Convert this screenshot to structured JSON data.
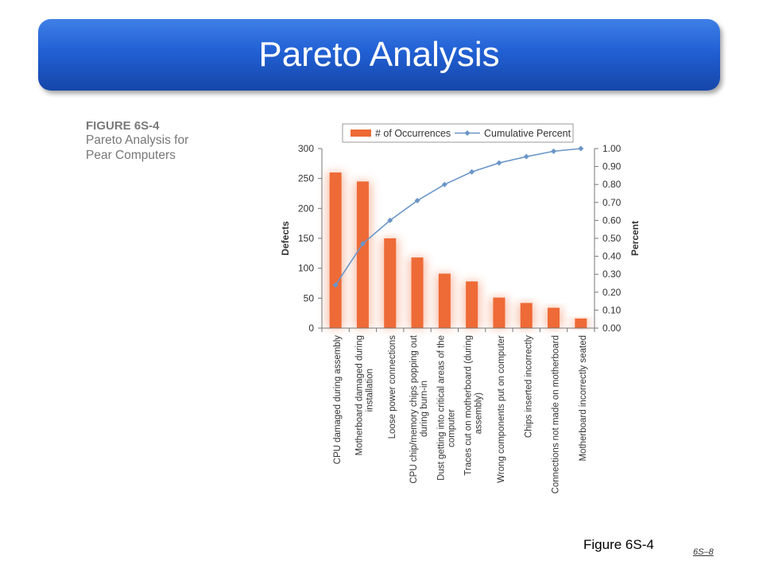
{
  "slide": {
    "title": "Pareto Analysis",
    "figure_ref": "Figure 6S-4",
    "slide_number": "6S–8"
  },
  "caption": {
    "figure_number": "FIGURE 6S-4",
    "lines": [
      "Pareto Analysis for",
      "Pear Computers"
    ]
  },
  "colors": {
    "bar": "#ee6a36",
    "line": "#6b96c8",
    "banner": "#2160d4"
  },
  "chart_data": {
    "type": "bar",
    "legend_position": "top",
    "grid": false,
    "ylabel": "Defects",
    "ylabel_right": "Percent",
    "ylim": [
      0,
      300
    ],
    "ylim_right": [
      0,
      1
    ],
    "yticks": [
      "0",
      "50",
      "100",
      "150",
      "200",
      "250",
      "300"
    ],
    "yticks_right": [
      "0.00",
      "0.10",
      "0.20",
      "0.30",
      "0.40",
      "0.50",
      "0.60",
      "0.70",
      "0.80",
      "0.90",
      "1.00"
    ],
    "categories": [
      [
        "CPU damaged during assembly"
      ],
      [
        "Motherboard damaged during",
        "installation"
      ],
      [
        "Loose power connections"
      ],
      [
        "CPU chip/memory chips popping out",
        "during burn-in"
      ],
      [
        "Dust getting into critical areas of the",
        "computer"
      ],
      [
        "Traces cut on motherboard (during",
        "assembly)"
      ],
      [
        "Wrong components put on computer"
      ],
      [
        "Chips inserted incorrectly"
      ],
      [
        "Connections not made on motherboard"
      ],
      [
        "Motherboard incorrectly seated"
      ]
    ],
    "series": [
      {
        "name": "# of Occurrences",
        "kind": "bar",
        "axis": "left",
        "values": [
          260,
          245,
          150,
          118,
          91,
          78,
          51,
          42,
          34,
          16
        ]
      },
      {
        "name": "Cumulative Percent",
        "kind": "line",
        "axis": "right",
        "values": [
          0.24,
          0.47,
          0.6,
          0.71,
          0.8,
          0.87,
          0.92,
          0.955,
          0.985,
          1.0
        ]
      }
    ]
  }
}
